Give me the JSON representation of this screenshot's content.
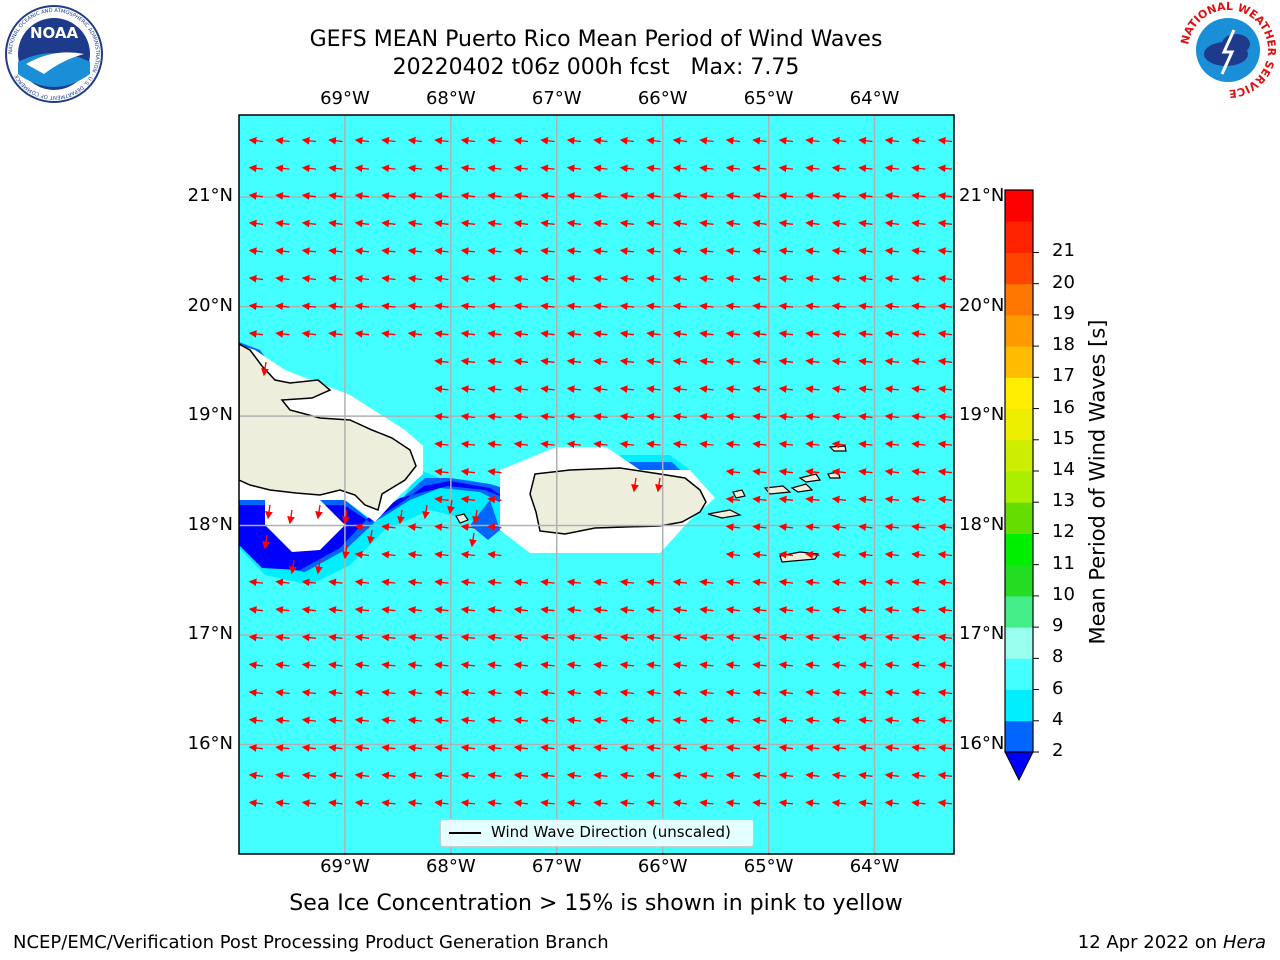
{
  "title": {
    "line1": "GEFS MEAN Puerto Rico Mean Period of Wind Waves",
    "line2": "20220402 t06z 000h fcst   Max: 7.75"
  },
  "logos": {
    "left": "NOAA",
    "left_ring": "NATIONAL OCEANIC AND ATMOSPHERIC ADMINISTRATION · U.S. DEPARTMENT OF COMMERCE",
    "right_ring": "NATIONAL WEATHER SERVICE"
  },
  "map": {
    "lon_ticks": [
      "69°W",
      "68°W",
      "67°W",
      "66°W",
      "65°W",
      "64°W"
    ],
    "lon_values": [
      -69,
      -68,
      -67,
      -66,
      -65,
      -64
    ],
    "lat_ticks": [
      "21°N",
      "20°N",
      "19°N",
      "18°N",
      "17°N",
      "16°N"
    ],
    "lat_values": [
      21,
      20,
      19,
      18,
      17,
      16
    ],
    "extent": {
      "lon": [
        -70.0,
        -63.25
      ],
      "lat": [
        15.0,
        21.75
      ]
    },
    "ocean_color": "#44ffff",
    "land_color": "#eeeedd",
    "arrow_color": "#ff0000",
    "legend_label": "Wind Wave Direction (unscaled)"
  },
  "colorbar": {
    "label": "Mean Period of Wind Waves [s]",
    "ticks": [
      "2",
      "4",
      "6",
      "8",
      "9",
      "10",
      "11",
      "12",
      "13",
      "14",
      "15",
      "16",
      "17",
      "18",
      "19",
      "20",
      "21"
    ],
    "colors": [
      "#0066ff",
      "#00eeff",
      "#44ffff",
      "#99ffee",
      "#44ee88",
      "#22dd22",
      "#00ee00",
      "#66dd00",
      "#aaee00",
      "#ccee00",
      "#eeee00",
      "#ffee00",
      "#ffbb00",
      "#ff9900",
      "#ff7700",
      "#ff4400",
      "#ff2200",
      "#ff0000"
    ],
    "under_color": "#0000ff"
  },
  "caption": "Sea Ice Concentration > 15% is shown in pink to yellow",
  "footer": {
    "left": "NCEP/EMC/Verification Post Processing Product Generation Branch",
    "right_date": "12 Apr 2022 on ",
    "right_host": "Hera"
  }
}
